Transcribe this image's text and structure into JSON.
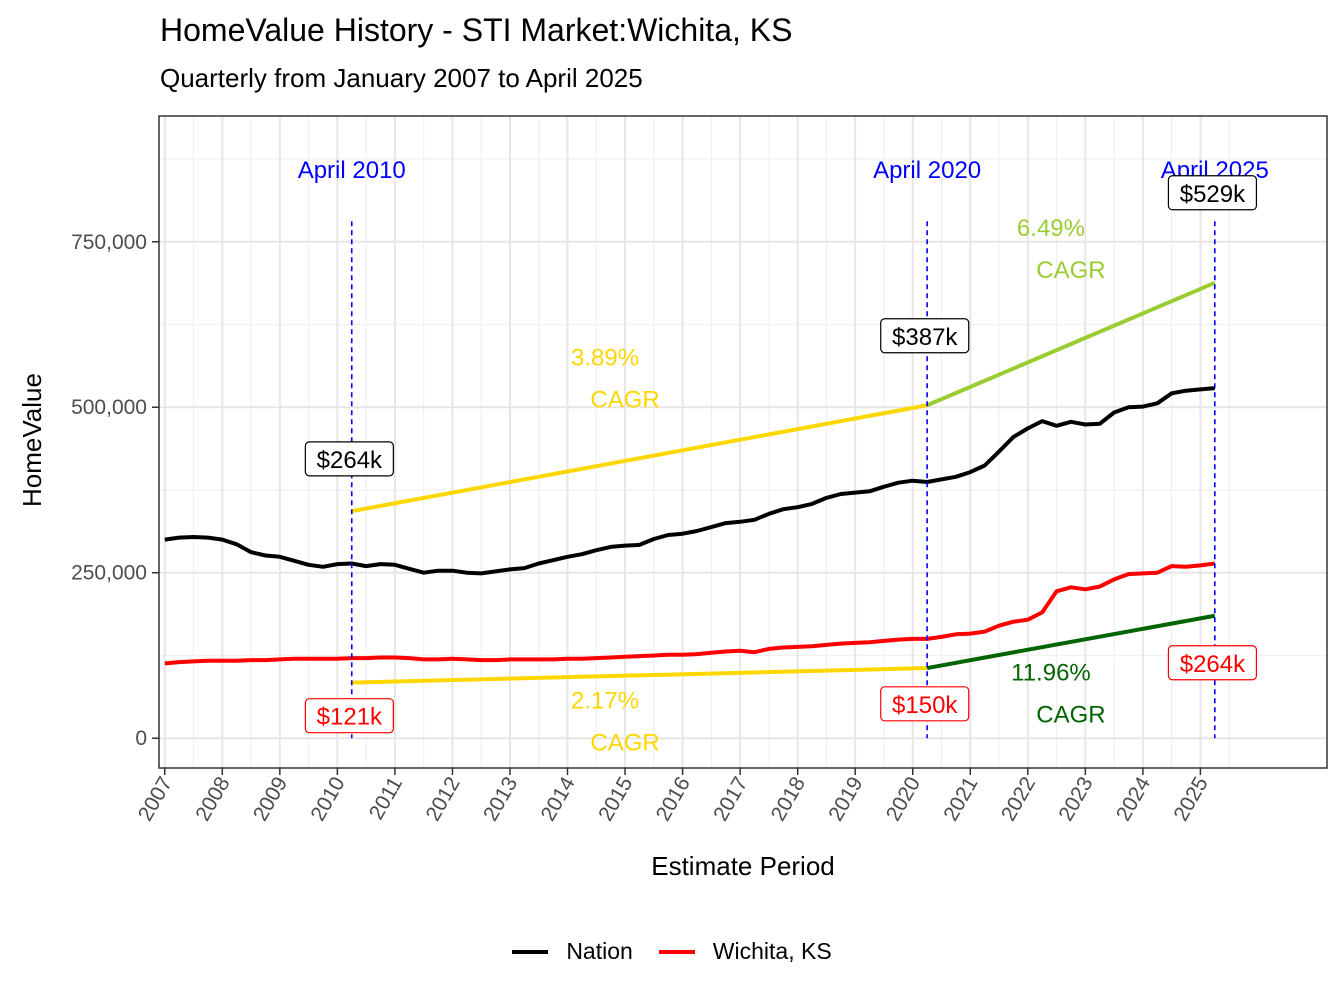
{
  "title": "HomeValue History - STI Market:Wichita, KS",
  "subtitle": "Quarterly from January 2007 to April 2025",
  "colors": {
    "nation": "#000000",
    "market": "#ff0000",
    "cagr_early": "#ffd700",
    "cagr_late_nation": "#9acd32",
    "cagr_late_market": "#006400",
    "marker": "#0000ff"
  },
  "chart_data": {
    "type": "line",
    "xlabel": "Estimate Period",
    "ylabel": "HomeValue",
    "xlim": [
      2006.9,
      2027.2
    ],
    "ylim": [
      -45000,
      940000
    ],
    "x_ticks": [
      2007,
      2008,
      2009,
      2010,
      2011,
      2012,
      2013,
      2014,
      2015,
      2016,
      2017,
      2018,
      2019,
      2020,
      2021,
      2022,
      2023,
      2024,
      2025
    ],
    "y_ticks": [
      {
        "value": 0,
        "label": "0"
      },
      {
        "value": 250000,
        "label": "250,000"
      },
      {
        "value": 500000,
        "label": "500,000"
      },
      {
        "value": 750000,
        "label": "750,000"
      }
    ],
    "grid": true,
    "legend_position": "bottom",
    "series": [
      {
        "name": "Nation",
        "color_key": "nation",
        "points": [
          [
            2007.0,
            300000
          ],
          [
            2007.25,
            303000
          ],
          [
            2007.5,
            304000
          ],
          [
            2007.75,
            303000
          ],
          [
            2008.0,
            300000
          ],
          [
            2008.25,
            293000
          ],
          [
            2008.5,
            281000
          ],
          [
            2008.75,
            276000
          ],
          [
            2009.0,
            274000
          ],
          [
            2009.25,
            268000
          ],
          [
            2009.5,
            262000
          ],
          [
            2009.75,
            259000
          ],
          [
            2010.0,
            263000
          ],
          [
            2010.25,
            264000
          ],
          [
            2010.5,
            260000
          ],
          [
            2010.75,
            263000
          ],
          [
            2011.0,
            262000
          ],
          [
            2011.25,
            256000
          ],
          [
            2011.5,
            250000
          ],
          [
            2011.75,
            253000
          ],
          [
            2012.0,
            253000
          ],
          [
            2012.25,
            250000
          ],
          [
            2012.5,
            249000
          ],
          [
            2012.75,
            252000
          ],
          [
            2013.0,
            255000
          ],
          [
            2013.25,
            257000
          ],
          [
            2013.5,
            264000
          ],
          [
            2013.75,
            269000
          ],
          [
            2014.0,
            274000
          ],
          [
            2014.25,
            278000
          ],
          [
            2014.5,
            284000
          ],
          [
            2014.75,
            289000
          ],
          [
            2015.0,
            291000
          ],
          [
            2015.25,
            292000
          ],
          [
            2015.5,
            301000
          ],
          [
            2015.75,
            307000
          ],
          [
            2016.0,
            309000
          ],
          [
            2016.25,
            313000
          ],
          [
            2016.5,
            319000
          ],
          [
            2016.75,
            325000
          ],
          [
            2017.0,
            327000
          ],
          [
            2017.25,
            330000
          ],
          [
            2017.5,
            339000
          ],
          [
            2017.75,
            346000
          ],
          [
            2018.0,
            349000
          ],
          [
            2018.25,
            354000
          ],
          [
            2018.5,
            363000
          ],
          [
            2018.75,
            369000
          ],
          [
            2019.0,
            371000
          ],
          [
            2019.25,
            373000
          ],
          [
            2019.5,
            380000
          ],
          [
            2019.75,
            386000
          ],
          [
            2020.0,
            389000
          ],
          [
            2020.25,
            387000
          ],
          [
            2020.5,
            391000
          ],
          [
            2020.75,
            395000
          ],
          [
            2021.0,
            402000
          ],
          [
            2021.25,
            412000
          ],
          [
            2021.5,
            433000
          ],
          [
            2021.75,
            455000
          ],
          [
            2022.0,
            468000
          ],
          [
            2022.25,
            479000
          ],
          [
            2022.5,
            472000
          ],
          [
            2022.75,
            478000
          ],
          [
            2023.0,
            474000
          ],
          [
            2023.25,
            475000
          ],
          [
            2023.5,
            492000
          ],
          [
            2023.75,
            500000
          ],
          [
            2024.0,
            501000
          ],
          [
            2024.25,
            506000
          ],
          [
            2024.5,
            521000
          ],
          [
            2024.75,
            525000
          ],
          [
            2025.0,
            527000
          ],
          [
            2025.25,
            529000
          ]
        ]
      },
      {
        "name": "Wichita, KS",
        "color_key": "market",
        "points": [
          [
            2007.0,
            113000
          ],
          [
            2007.25,
            115000
          ],
          [
            2007.5,
            116000
          ],
          [
            2007.75,
            117000
          ],
          [
            2008.0,
            117000
          ],
          [
            2008.25,
            117000
          ],
          [
            2008.5,
            118000
          ],
          [
            2008.75,
            118000
          ],
          [
            2009.0,
            119000
          ],
          [
            2009.25,
            120000
          ],
          [
            2009.5,
            120000
          ],
          [
            2009.75,
            120000
          ],
          [
            2010.0,
            120000
          ],
          [
            2010.25,
            121000
          ],
          [
            2010.5,
            121000
          ],
          [
            2010.75,
            122000
          ],
          [
            2011.0,
            122000
          ],
          [
            2011.25,
            121000
          ],
          [
            2011.5,
            119000
          ],
          [
            2011.75,
            119000
          ],
          [
            2012.0,
            120000
          ],
          [
            2012.25,
            119000
          ],
          [
            2012.5,
            118000
          ],
          [
            2012.75,
            118000
          ],
          [
            2013.0,
            119000
          ],
          [
            2013.25,
            119000
          ],
          [
            2013.5,
            119000
          ],
          [
            2013.75,
            119000
          ],
          [
            2014.0,
            120000
          ],
          [
            2014.25,
            120000
          ],
          [
            2014.5,
            121000
          ],
          [
            2014.75,
            122000
          ],
          [
            2015.0,
            123000
          ],
          [
            2015.25,
            124000
          ],
          [
            2015.5,
            125000
          ],
          [
            2015.75,
            126000
          ],
          [
            2016.0,
            126000
          ],
          [
            2016.25,
            127000
          ],
          [
            2016.5,
            129000
          ],
          [
            2016.75,
            131000
          ],
          [
            2017.0,
            132000
          ],
          [
            2017.25,
            130000
          ],
          [
            2017.5,
            135000
          ],
          [
            2017.75,
            137000
          ],
          [
            2018.0,
            138000
          ],
          [
            2018.25,
            139000
          ],
          [
            2018.5,
            141000
          ],
          [
            2018.75,
            143000
          ],
          [
            2019.0,
            144000
          ],
          [
            2019.25,
            145000
          ],
          [
            2019.5,
            147000
          ],
          [
            2019.75,
            149000
          ],
          [
            2020.0,
            150000
          ],
          [
            2020.25,
            150000
          ],
          [
            2020.5,
            153000
          ],
          [
            2020.75,
            157000
          ],
          [
            2021.0,
            158000
          ],
          [
            2021.25,
            161000
          ],
          [
            2021.5,
            170000
          ],
          [
            2021.75,
            176000
          ],
          [
            2022.0,
            179000
          ],
          [
            2022.25,
            190000
          ],
          [
            2022.5,
            222000
          ],
          [
            2022.75,
            228000
          ],
          [
            2023.0,
            225000
          ],
          [
            2023.25,
            229000
          ],
          [
            2023.5,
            240000
          ],
          [
            2023.75,
            248000
          ],
          [
            2024.0,
            249000
          ],
          [
            2024.25,
            250000
          ],
          [
            2024.5,
            260000
          ],
          [
            2024.75,
            259000
          ],
          [
            2025.0,
            261000
          ],
          [
            2025.25,
            264000
          ]
        ]
      }
    ],
    "cagr_lines": [
      {
        "color_key": "cagr_early",
        "from": [
          2010.25,
          343000
        ],
        "to": [
          2020.25,
          503000
        ]
      },
      {
        "color_key": "cagr_late_nation",
        "from": [
          2020.25,
          503000
        ],
        "to": [
          2025.25,
          688000
        ]
      },
      {
        "color_key": "cagr_early",
        "from": [
          2010.25,
          84000
        ],
        "to": [
          2020.25,
          106000
        ]
      },
      {
        "color_key": "cagr_late_market",
        "from": [
          2020.25,
          106000
        ],
        "to": [
          2025.25,
          185000
        ]
      }
    ],
    "markers": [
      {
        "x": 2010.25,
        "label": "April 2010"
      },
      {
        "x": 2020.25,
        "label": "April 2020"
      },
      {
        "x": 2025.25,
        "label": "April 2025"
      }
    ],
    "annotations": {
      "cagr_labels": [
        {
          "x": 2015.0,
          "y": 563000,
          "pct": "3.89%",
          "word": "CAGR",
          "color_key": "cagr_early"
        },
        {
          "x": 2022.75,
          "y": 759000,
          "pct": "6.49%",
          "word": "CAGR",
          "color_key": "cagr_late_nation"
        },
        {
          "x": 2015.0,
          "y": 45000,
          "pct": "2.17%",
          "word": "CAGR",
          "color_key": "cagr_early"
        },
        {
          "x": 2022.75,
          "y": 87000,
          "pct": "11.96%",
          "word": "CAGR",
          "color_key": "cagr_late_market"
        }
      ],
      "value_labels": [
        {
          "x": 2010.0,
          "y": 422000,
          "text": "$264k",
          "color_key": "nation"
        },
        {
          "x": 2020.0,
          "y": 608000,
          "text": "$387k",
          "color_key": "nation"
        },
        {
          "x": 2025.0,
          "y": 824000,
          "text": "$529k",
          "color_key": "nation"
        },
        {
          "x": 2010.0,
          "y": 34000,
          "text": "$121k",
          "color_key": "market"
        },
        {
          "x": 2020.0,
          "y": 52000,
          "text": "$150k",
          "color_key": "market"
        },
        {
          "x": 2025.0,
          "y": 114000,
          "text": "$264k",
          "color_key": "market"
        }
      ]
    }
  }
}
